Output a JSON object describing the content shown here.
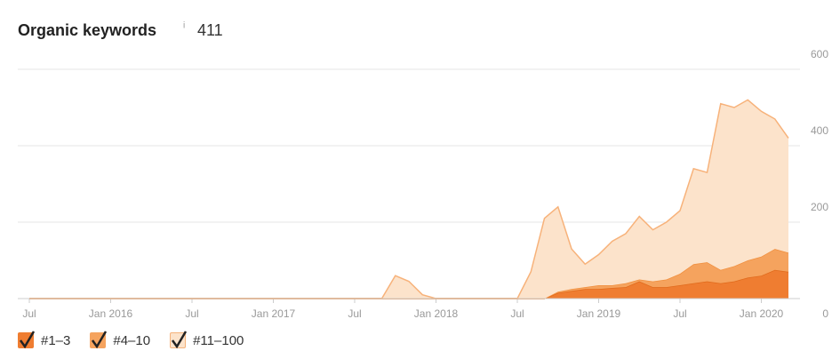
{
  "chart_data": {
    "type": "stacked-area",
    "title": "Organic keywords",
    "info_icon": "i",
    "total": 411,
    "x": [
      "2015-07",
      "2015-08",
      "2015-09",
      "2015-10",
      "2015-11",
      "2015-12",
      "2016-01",
      "2016-02",
      "2016-03",
      "2016-04",
      "2016-05",
      "2016-06",
      "2016-07",
      "2016-08",
      "2016-09",
      "2016-10",
      "2016-11",
      "2016-12",
      "2017-01",
      "2017-02",
      "2017-03",
      "2017-04",
      "2017-05",
      "2017-06",
      "2017-07",
      "2017-08",
      "2017-09",
      "2017-10",
      "2017-11",
      "2017-12",
      "2018-01",
      "2018-02",
      "2018-03",
      "2018-04",
      "2018-05",
      "2018-06",
      "2018-07",
      "2018-08",
      "2018-09",
      "2018-10",
      "2018-11",
      "2018-12",
      "2019-01",
      "2019-02",
      "2019-03",
      "2019-04",
      "2019-05",
      "2019-06",
      "2019-07",
      "2019-08",
      "2019-09",
      "2019-10",
      "2019-11",
      "2019-12",
      "2020-01",
      "2020-02",
      "2020-03"
    ],
    "series": [
      {
        "name": "#1–3",
        "color": "#ef7d31",
        "values": [
          0,
          0,
          0,
          0,
          0,
          0,
          0,
          0,
          0,
          0,
          0,
          0,
          0,
          0,
          0,
          0,
          0,
          0,
          0,
          0,
          0,
          0,
          0,
          0,
          0,
          0,
          0,
          0,
          0,
          0,
          0,
          0,
          0,
          0,
          0,
          0,
          0,
          0,
          0,
          15,
          20,
          25,
          25,
          28,
          30,
          45,
          30,
          30,
          35,
          40,
          45,
          40,
          45,
          55,
          60,
          75,
          70
        ]
      },
      {
        "name": "#4–10",
        "color": "#f5a35e",
        "values": [
          0,
          0,
          0,
          0,
          0,
          0,
          0,
          0,
          0,
          0,
          0,
          0,
          0,
          0,
          0,
          0,
          0,
          0,
          0,
          0,
          0,
          0,
          0,
          0,
          0,
          0,
          0,
          0,
          0,
          0,
          0,
          0,
          0,
          0,
          0,
          0,
          0,
          0,
          0,
          3,
          5,
          5,
          10,
          7,
          10,
          5,
          15,
          20,
          30,
          50,
          50,
          35,
          40,
          45,
          50,
          55,
          50
        ]
      },
      {
        "name": "#11–100",
        "color": "#fce3cb",
        "values": [
          0,
          0,
          0,
          0,
          0,
          0,
          0,
          0,
          0,
          0,
          0,
          0,
          0,
          0,
          0,
          0,
          0,
          0,
          0,
          0,
          0,
          0,
          0,
          0,
          0,
          0,
          0,
          60,
          45,
          10,
          0,
          0,
          0,
          0,
          0,
          0,
          0,
          70,
          210,
          222,
          105,
          60,
          80,
          115,
          130,
          165,
          135,
          150,
          165,
          250,
          235,
          435,
          415,
          420,
          380,
          340,
          300
        ]
      }
    ],
    "xlim": [
      "2015-07",
      "2020-03"
    ],
    "xticks": [
      {
        "value": "2015-07",
        "label": "Jul"
      },
      {
        "value": "2016-01",
        "label": "Jan 2016"
      },
      {
        "value": "2016-07",
        "label": "Jul"
      },
      {
        "value": "2017-01",
        "label": "Jan 2017"
      },
      {
        "value": "2017-07",
        "label": "Jul"
      },
      {
        "value": "2018-01",
        "label": "Jan 2018"
      },
      {
        "value": "2018-07",
        "label": "Jul"
      },
      {
        "value": "2019-01",
        "label": "Jan 2019"
      },
      {
        "value": "2019-07",
        "label": "Jul"
      },
      {
        "value": "2020-01",
        "label": "Jan 2020"
      }
    ],
    "ylim": [
      0,
      600
    ],
    "yticks": [
      0,
      200,
      400,
      600
    ],
    "grid": true
  }
}
